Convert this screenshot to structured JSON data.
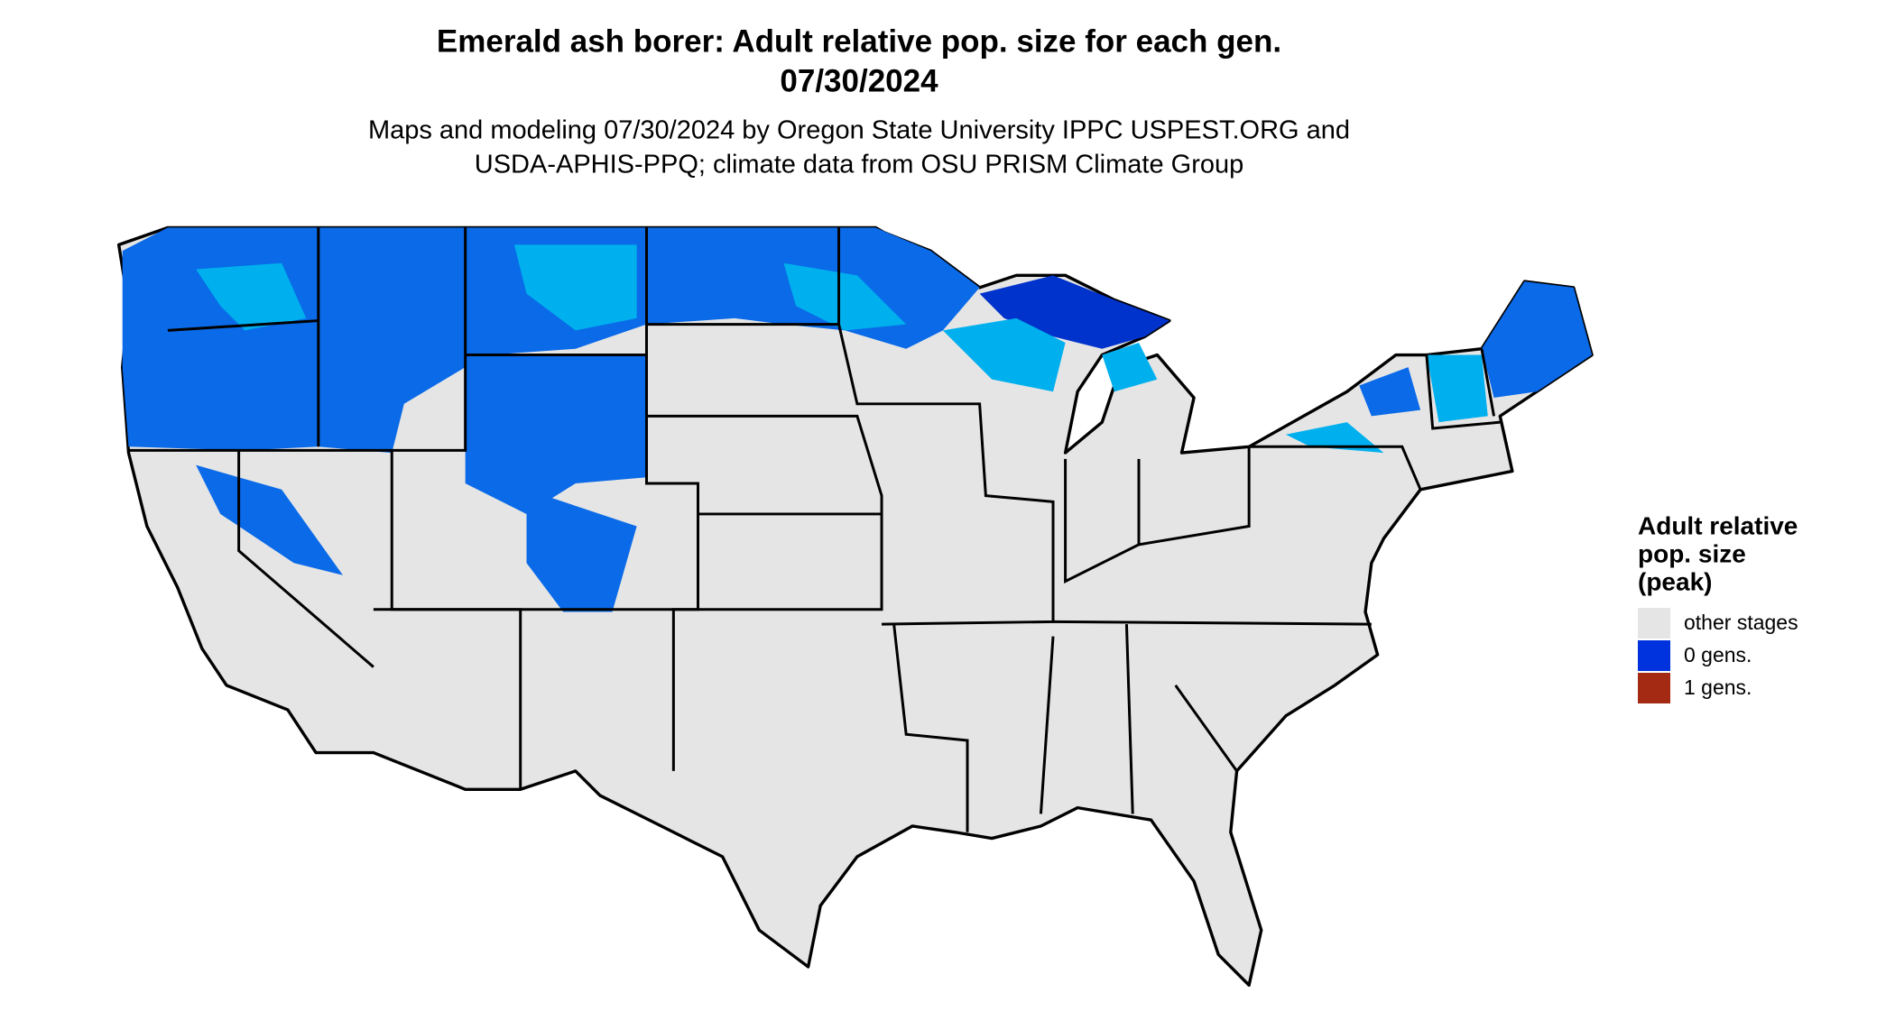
{
  "title": [
    "Emerald ash borer: Adult relative pop. size for each gen.",
    "07/30/2024"
  ],
  "subtitle": [
    "Maps and modeling 07/30/2024 by Oregon State University IPPC USPEST.ORG and",
    "USDA-APHIS-PPQ; climate data from OSU PRISM Climate Group"
  ],
  "legend": {
    "title": [
      "Adult relative",
      "pop. size",
      "(peak)"
    ],
    "items": [
      {
        "label": "other stages",
        "color": "#e5e5e5"
      },
      {
        "label": "0 gens.",
        "color": "#0033dd"
      },
      {
        "label": "1 gens.",
        "color": "#a52a14"
      }
    ]
  }
}
